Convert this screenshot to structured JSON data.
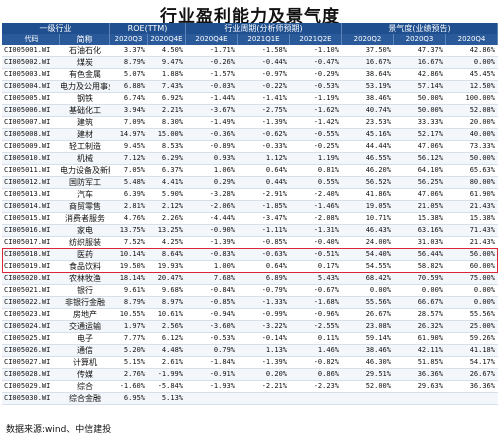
{
  "title": "行业盈利能力及景气度",
  "header": {
    "group_industry": "一级行业",
    "group_roe": "ROE(TTM)",
    "group_cycle": "行业周期(分析师预期)",
    "group_boom": "景气度(业绩预告)",
    "columns": [
      "代码",
      "简称",
      "2020Q3",
      "2020Q4E",
      "2020Q4E",
      "2021Q1E",
      "2021Q2E",
      "2020Q2",
      "2020Q3",
      "2020Q4"
    ]
  },
  "rows": [
    [
      "CI005001.WI",
      "石油石化",
      "3.37%",
      "4.50%",
      "-1.71%",
      "-1.58%",
      "-1.10%",
      "37.50%",
      "47.37%",
      "42.86%"
    ],
    [
      "CI005002.WI",
      "煤炭",
      "8.79%",
      "9.47%",
      "-0.26%",
      "-0.44%",
      "-0.47%",
      "16.67%",
      "16.67%",
      "0.00%"
    ],
    [
      "CI005003.WI",
      "有色金属",
      "5.07%",
      "1.88%",
      "-1.57%",
      "-0.97%",
      "-0.29%",
      "38.64%",
      "42.86%",
      "45.45%"
    ],
    [
      "CI005004.WI",
      "电力及公用事业",
      "6.88%",
      "7.43%",
      "-0.03%",
      "-0.22%",
      "-0.53%",
      "53.19%",
      "57.14%",
      "12.50%"
    ],
    [
      "CI005005.WI",
      "钢铁",
      "6.74%",
      "6.92%",
      "-1.44%",
      "-1.41%",
      "-1.19%",
      "38.46%",
      "50.00%",
      "100.00%"
    ],
    [
      "CI005006.WI",
      "基础化工",
      "3.94%",
      "2.21%",
      "-3.67%",
      "-2.75%",
      "-1.62%",
      "40.74%",
      "50.00%",
      "52.08%"
    ],
    [
      "CI005007.WI",
      "建筑",
      "7.09%",
      "8.30%",
      "-1.49%",
      "-1.39%",
      "-1.42%",
      "23.53%",
      "33.33%",
      "20.00%"
    ],
    [
      "CI005008.WI",
      "建材",
      "14.97%",
      "15.00%",
      "-0.36%",
      "-0.62%",
      "-0.55%",
      "45.16%",
      "52.17%",
      "40.00%"
    ],
    [
      "CI005009.WI",
      "轻工制造",
      "9.45%",
      "8.53%",
      "-0.89%",
      "-0.33%",
      "-0.25%",
      "44.44%",
      "47.06%",
      "73.33%"
    ],
    [
      "CI005010.WI",
      "机械",
      "7.12%",
      "6.29%",
      "0.93%",
      "1.12%",
      "1.19%",
      "46.55%",
      "56.12%",
      "50.00%"
    ],
    [
      "CI005011.WI",
      "电力设备及新能源",
      "7.05%",
      "6.37%",
      "1.06%",
      "0.64%",
      "0.81%",
      "46.20%",
      "64.10%",
      "65.63%"
    ],
    [
      "CI005012.WI",
      "国防军工",
      "5.48%",
      "4.41%",
      "0.29%",
      "0.44%",
      "0.55%",
      "56.52%",
      "56.25%",
      "80.00%"
    ],
    [
      "CI005013.WI",
      "汽车",
      "6.39%",
      "5.90%",
      "-3.28%",
      "-2.91%",
      "-2.40%",
      "41.86%",
      "47.06%",
      "61.90%"
    ],
    [
      "CI005014.WI",
      "商贸零售",
      "2.81%",
      "2.12%",
      "-2.06%",
      "-1.85%",
      "-1.46%",
      "19.05%",
      "21.05%",
      "21.43%"
    ],
    [
      "CI005015.WI",
      "消费者服务",
      "4.76%",
      "2.26%",
      "-4.44%",
      "-3.47%",
      "-2.08%",
      "10.71%",
      "15.38%",
      "15.38%"
    ],
    [
      "CI005016.WI",
      "家电",
      "13.75%",
      "13.25%",
      "-0.90%",
      "-1.11%",
      "-1.31%",
      "46.43%",
      "63.16%",
      "71.43%"
    ],
    [
      "CI005017.WI",
      "纺织服装",
      "7.52%",
      "4.25%",
      "-1.39%",
      "-0.85%",
      "-0.40%",
      "24.00%",
      "31.03%",
      "21.43%"
    ],
    [
      "CI005018.WI",
      "医药",
      "10.14%",
      "8.64%",
      "-0.83%",
      "-0.63%",
      "-0.51%",
      "54.40%",
      "56.44%",
      "56.00%"
    ],
    [
      "CI005019.WI",
      "食品饮料",
      "19.50%",
      "19.93%",
      "1.00%",
      "0.64%",
      "0.17%",
      "54.55%",
      "58.82%",
      "60.00%"
    ],
    [
      "CI005020.WI",
      "农林牧渔",
      "18.14%",
      "20.47%",
      "7.68%",
      "6.89%",
      "5.43%",
      "68.42%",
      "70.59%",
      "75.00%"
    ],
    [
      "CI005021.WI",
      "银行",
      "9.61%",
      "9.68%",
      "-0.84%",
      "-0.79%",
      "-0.67%",
      "0.00%",
      "0.00%",
      "0.00%"
    ],
    [
      "CI005022.WI",
      "非银行金融",
      "8.79%",
      "8.97%",
      "-0.85%",
      "-1.33%",
      "-1.68%",
      "55.56%",
      "66.67%",
      "0.00%"
    ],
    [
      "CI005023.WI",
      "房地产",
      "10.55%",
      "10.61%",
      "-0.94%",
      "-0.99%",
      "-0.96%",
      "26.67%",
      "28.57%",
      "55.56%"
    ],
    [
      "CI005024.WI",
      "交通运输",
      "1.97%",
      "2.56%",
      "-3.60%",
      "-3.22%",
      "-2.55%",
      "23.08%",
      "26.32%",
      "25.00%"
    ],
    [
      "CI005025.WI",
      "电子",
      "7.77%",
      "6.12%",
      "-0.53%",
      "-0.14%",
      "0.11%",
      "59.14%",
      "61.90%",
      "59.26%"
    ],
    [
      "CI005026.WI",
      "通信",
      "5.20%",
      "4.48%",
      "0.79%",
      "1.13%",
      "1.46%",
      "38.46%",
      "42.11%",
      "41.18%"
    ],
    [
      "CI005027.WI",
      "计算机",
      "5.15%",
      "2.61%",
      "-1.84%",
      "-1.39%",
      "-0.82%",
      "46.30%",
      "51.85%",
      "54.17%"
    ],
    [
      "CI005028.WI",
      "传媒",
      "2.76%",
      "-1.99%",
      "-0.91%",
      "0.20%",
      "0.86%",
      "29.51%",
      "36.36%",
      "26.67%"
    ],
    [
      "CI005029.WI",
      "综合",
      "-1.60%",
      "-5.84%",
      "-1.93%",
      "-2.21%",
      "-2.23%",
      "52.00%",
      "29.63%",
      "36.36%"
    ],
    [
      "CI005030.WI",
      "综合金融",
      "6.95%",
      "5.13%",
      "",
      "",
      "",
      "",
      "",
      ""
    ]
  ],
  "highlight_rows": [
    "CI005018.WI",
    "CI005019.WI"
  ],
  "source": "数据来源:wind、中信建投"
}
